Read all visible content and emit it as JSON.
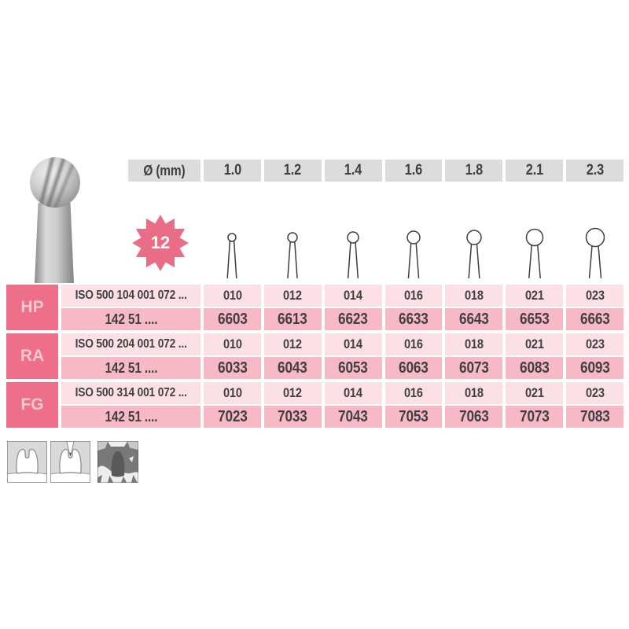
{
  "product": {
    "photo_alt": "round-bur-photo",
    "badge_blade_count": "12"
  },
  "size_header": {
    "diameter_label": "Ø (mm)",
    "sizes": [
      "1.0",
      "1.2",
      "1.4",
      "1.6",
      "1.8",
      "2.1",
      "2.3"
    ]
  },
  "bur_icons": {
    "diameters_mm": [
      1.0,
      1.2,
      1.4,
      1.6,
      1.8,
      2.1,
      2.3
    ]
  },
  "table": {
    "rows": [
      {
        "shank_label": "HP",
        "iso_code": "ISO 500 104 001 072 ...",
        "order_prefix": "142 51 ....",
        "figure_numbers": [
          "010",
          "012",
          "014",
          "016",
          "018",
          "021",
          "023"
        ],
        "order_numbers": [
          "6603",
          "6613",
          "6623",
          "6633",
          "6643",
          "6653",
          "6663"
        ]
      },
      {
        "shank_label": "RA",
        "iso_code": "ISO 500 204 001 072 ...",
        "order_prefix": "142 51 ....",
        "figure_numbers": [
          "010",
          "012",
          "014",
          "016",
          "018",
          "021",
          "023"
        ],
        "order_numbers": [
          "6033",
          "6043",
          "6053",
          "6063",
          "6073",
          "6083",
          "6093"
        ]
      },
      {
        "shank_label": "FG",
        "iso_code": "ISO 500 314 001 072 ...",
        "order_prefix": "142 51 ....",
        "figure_numbers": [
          "010",
          "012",
          "014",
          "016",
          "018",
          "021",
          "023"
        ],
        "order_numbers": [
          "7023",
          "7033",
          "7043",
          "7053",
          "7063",
          "7073",
          "7083"
        ]
      }
    ]
  },
  "indication_icons": [
    {
      "name": "tooth-cavity-icon"
    },
    {
      "name": "tooth-excavation-icon"
    },
    {
      "name": "bone-fragments-icon"
    }
  ],
  "colors": {
    "accent_pink": "#ed6f89",
    "badge_pink": "#ea6d87",
    "light_pink": "#fbe0e6",
    "medium_pink": "#f6b9c5",
    "header_gray": "#dcdcdc",
    "text_dark": "#413f42",
    "label_text_pink": "#f8c8d3"
  }
}
